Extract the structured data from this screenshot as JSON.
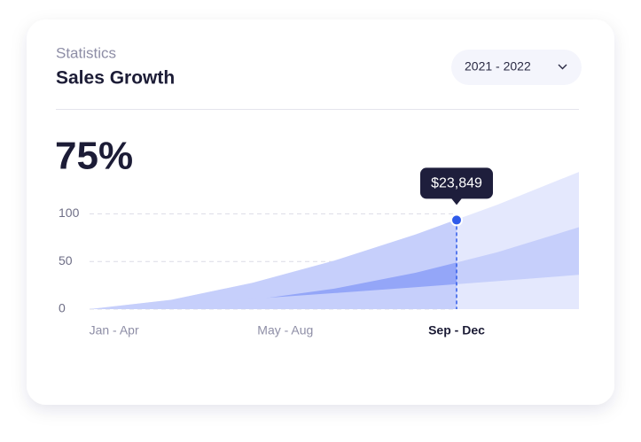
{
  "chart_data": {
    "type": "area",
    "subtitle": "Statistics",
    "title": "Sales Growth",
    "period": "2021 - 2022",
    "headline": "75%",
    "tooltip": "$23,849",
    "x": [
      0,
      1,
      2,
      3,
      4,
      5,
      6
    ],
    "xlim": [
      0,
      6
    ],
    "xticks": [
      {
        "value": 0.3,
        "label": "Jan - Apr"
      },
      {
        "value": 2.4,
        "label": "May - Aug"
      },
      {
        "value": 4.5,
        "label": "Sep - Dec"
      }
    ],
    "ylim": [
      0,
      145
    ],
    "yticks": [
      0,
      50,
      100
    ],
    "grid": true,
    "series": [
      {
        "color": "#e4e8fd",
        "highlight_color": "#c6cffb",
        "values": [
          0,
          9.8,
          27.7,
          50.9,
          78.4,
          109.6,
          144
        ]
      },
      {
        "color": "#c6cffb",
        "highlight_color": "#94a6f8",
        "values": [
          0,
          2.4,
          9.6,
          21.5,
          38.2,
          59.7,
          86
        ]
      },
      {
        "color": "#e4e8fd",
        "highlight_color": "#c6cffb",
        "values": [
          0,
          5.5,
          10.8,
          16.8,
          23.0,
          29.4,
          36
        ]
      }
    ],
    "highlight": {
      "x": 4.5,
      "y": 93.5,
      "color": "#2f5bea"
    }
  }
}
